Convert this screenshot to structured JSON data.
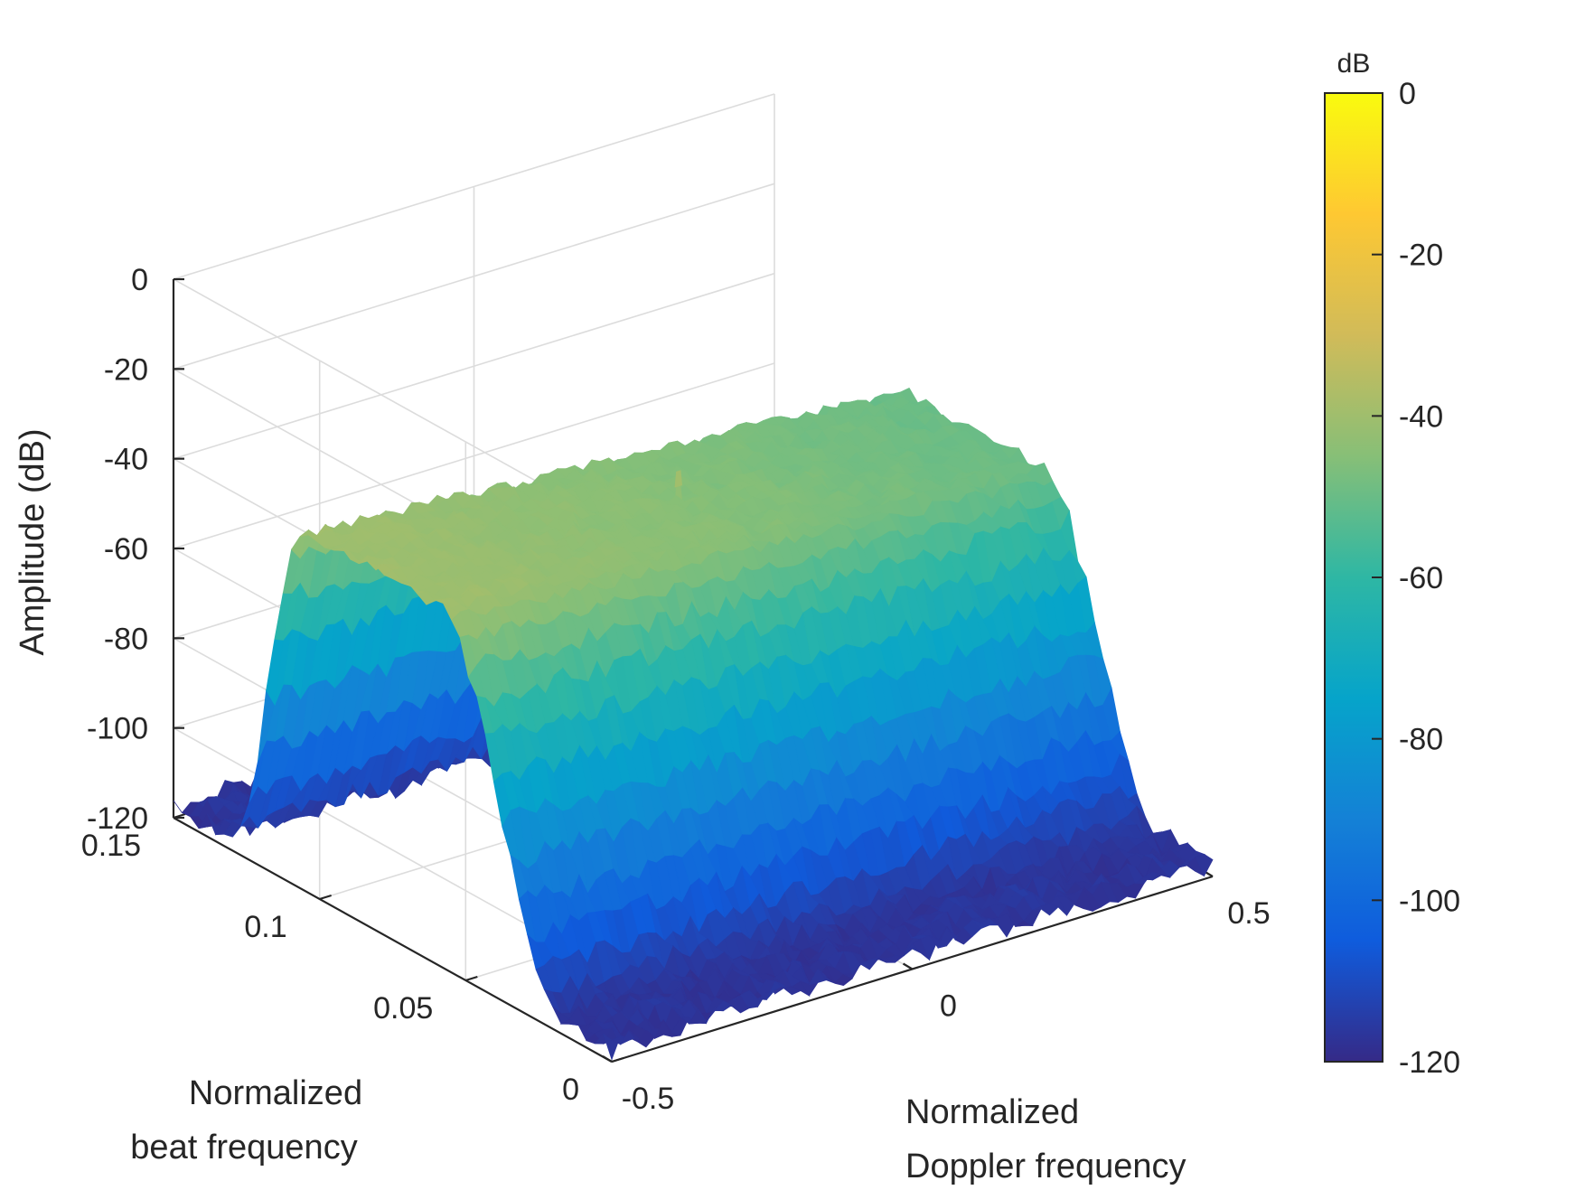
{
  "chart_data": {
    "type": "surface",
    "zlabel": "Amplitude (dB)",
    "xlabel": [
      "Normalized",
      "Doppler frequency"
    ],
    "ylabel": [
      "Normalized",
      "beat frequency"
    ],
    "xlim": [
      -0.5,
      0.5
    ],
    "ylim": [
      0,
      0.15
    ],
    "zlim": [
      -120,
      0
    ],
    "x_ticks": [
      "-0.5",
      "0",
      "0.5"
    ],
    "y_ticks": [
      "0",
      "0.05",
      "0.1",
      "0.15"
    ],
    "z_ticks": [
      "0",
      "-20",
      "-40",
      "-60",
      "-80",
      "-100",
      "-120"
    ],
    "grid": true,
    "colormap": "parula",
    "colorbar": {
      "title": "dB",
      "range": [
        -120,
        0
      ],
      "ticks": [
        "0",
        "-20",
        "-40",
        "-60",
        "-80",
        "-100",
        "-120"
      ],
      "colors": [
        "#352a87",
        "#0f5cdd",
        "#1481d6",
        "#06a4ca",
        "#2eb7a4",
        "#87bf77",
        "#d1bb59",
        "#fec832",
        "#f9fb0e"
      ]
    },
    "surface": {
      "plateau_level_db": -45,
      "plateau_tilt_db": 5,
      "floor_level_db": -117,
      "beat_band": [
        0.03,
        0.11
      ],
      "doppler_band": [
        -0.5,
        0.5
      ],
      "peak": {
        "doppler": 0,
        "beat": 0.08,
        "amplitude_db": -38
      }
    }
  }
}
